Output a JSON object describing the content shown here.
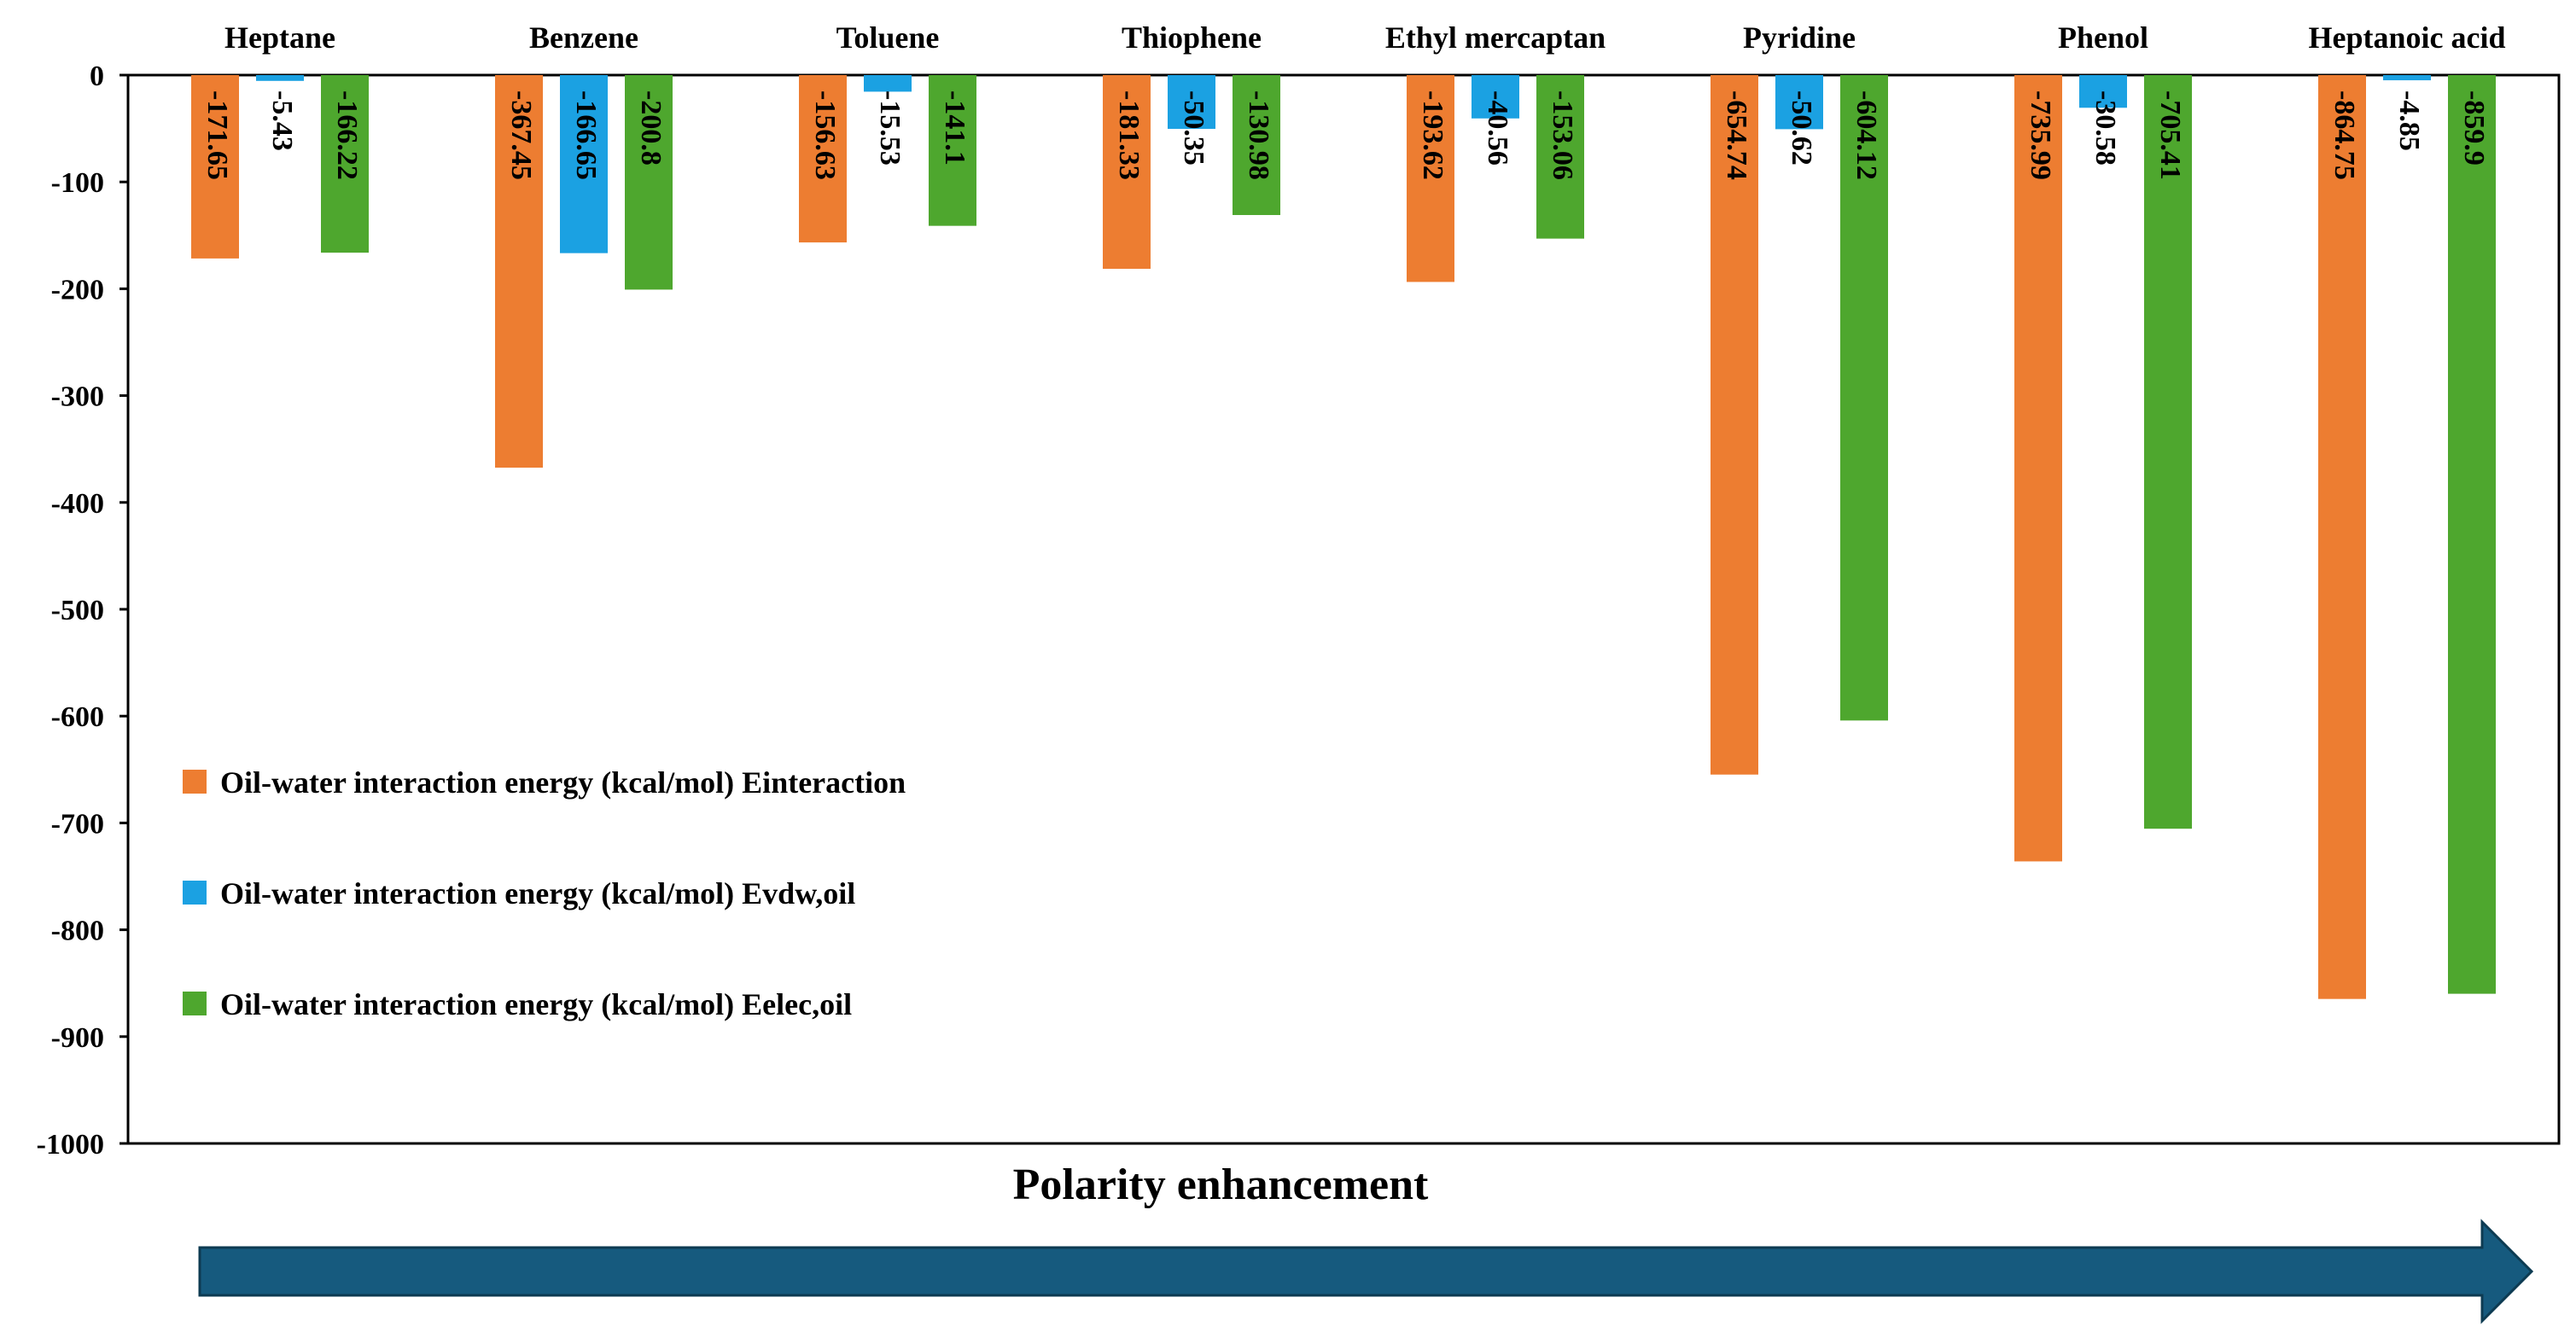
{
  "chart_data": {
    "type": "bar",
    "title": "",
    "xlabel": "",
    "ylabel": "",
    "categories": [
      "Heptane",
      "Benzene",
      "Toluene",
      "Thiophene",
      "Ethyl mercaptan",
      "Pyridine",
      "Phenol",
      "Heptanoic acid"
    ],
    "series": [
      {
        "name": "Oil-water interaction energy (kcal/mol) Einteraction",
        "color": "#ED7D31",
        "values": [
          -171.65,
          -367.45,
          -156.63,
          -181.33,
          -193.62,
          -654.74,
          -735.99,
          -864.75
        ]
      },
      {
        "name": "Oil-water interaction energy (kcal/mol) Evdw,oil",
        "color": "#1BA1E2",
        "values": [
          -5.43,
          -166.65,
          -15.53,
          -50.35,
          -40.56,
          -50.62,
          -30.58,
          -4.85
        ]
      },
      {
        "name": "Oil-water interaction energy (kcal/mol) Eelec,oil",
        "color": "#4EA72E",
        "values": [
          -166.22,
          -200.8,
          -141.1,
          -130.98,
          -153.06,
          -604.12,
          -705.41,
          -859.9
        ]
      }
    ],
    "ylim": [
      -1000,
      0
    ],
    "yticks": [
      0,
      -100,
      -200,
      -300,
      -400,
      -500,
      -600,
      -700,
      -800,
      -900,
      -1000
    ],
    "category_axis_position": "top",
    "legend_position": "left-bottom inside plot"
  },
  "caption": "Polarity enhancement",
  "arrow_color": "#165A7E"
}
